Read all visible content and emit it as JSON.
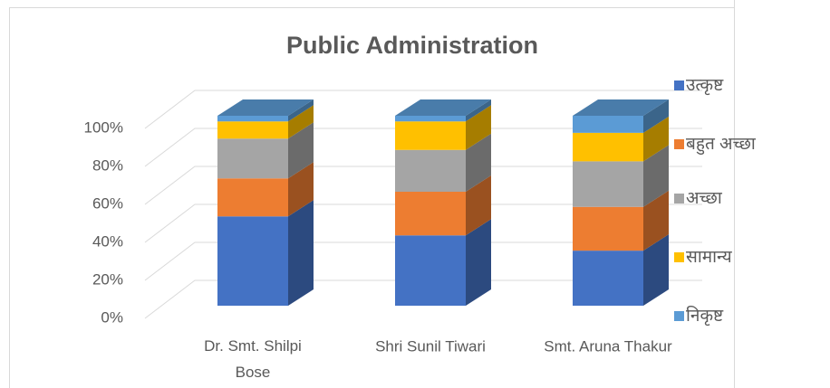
{
  "chart_data": {
    "type": "bar3d_stacked_percent",
    "title": "Public Administration",
    "categories": [
      "Dr. Smt. Shilpi Bose",
      "Shri Sunil Tiwari",
      "Smt. Aruna Thakur"
    ],
    "series": [
      {
        "name": "उत्कृष्ट",
        "color": "#4472c4",
        "values": [
          47,
          37,
          29
        ]
      },
      {
        "name": "बहुत अच्छा",
        "color": "#ed7d31",
        "values": [
          20,
          23,
          23
        ]
      },
      {
        "name": "अच्छा",
        "color": "#a5a5a5",
        "values": [
          21,
          22,
          24
        ]
      },
      {
        "name": "सामान्य",
        "color": "#ffc000",
        "values": [
          9,
          15,
          15
        ]
      },
      {
        "name": "निकृष्ट",
        "color": "#5b9bd5",
        "values": [
          3,
          3,
          9
        ]
      }
    ],
    "ylim": [
      0,
      100
    ],
    "yticks": [
      {
        "value": 0,
        "label": "0%"
      },
      {
        "value": 20,
        "label": "20%"
      },
      {
        "value": 40,
        "label": "40%"
      },
      {
        "value": 60,
        "label": "60%"
      },
      {
        "value": 80,
        "label": "80%"
      },
      {
        "value": 100,
        "label": "100%"
      }
    ],
    "grid": true,
    "legend": "right"
  }
}
